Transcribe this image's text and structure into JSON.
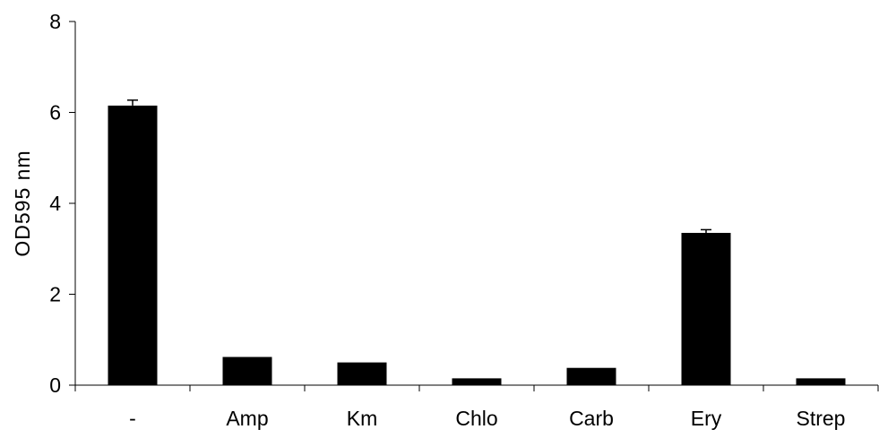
{
  "chart_data": {
    "type": "bar",
    "categories": [
      "-",
      "Amp",
      "Km",
      "Chlo",
      "Carb",
      "Ery",
      "Strep"
    ],
    "values": [
      6.15,
      0.62,
      0.5,
      0.15,
      0.38,
      3.35,
      0.15
    ],
    "errors": [
      0.12,
      0.0,
      0.0,
      0.0,
      0.0,
      0.07,
      0.0
    ],
    "title": "",
    "xlabel": "",
    "ylabel": "OD595 nm",
    "ylim": [
      0,
      8
    ],
    "yticks": [
      0,
      2,
      4,
      6,
      8
    ],
    "grid": false,
    "bar_color": "#000000"
  }
}
